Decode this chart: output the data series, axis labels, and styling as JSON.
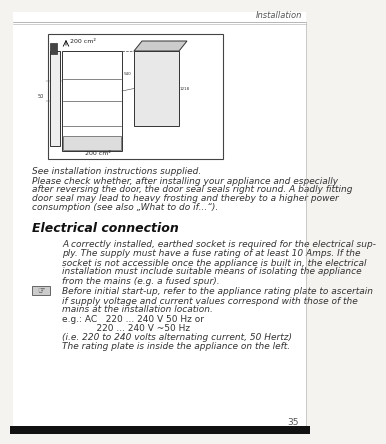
{
  "bg_color": "#f5f3f0",
  "page_bg": "#ffffff",
  "header_text": "Installation",
  "header_color": "#666666",
  "page_number": "35",
  "section_title": "Electrical connection",
  "body_text_color": "#333333",
  "line1": "See installation instructions supplied.",
  "para1_l1": "Please check whether, after installing your appliance and especially",
  "para1_l2": "after reversing the door, the door seal seals right round. A badly fitting",
  "para1_l3": "door seal may lead to heavy frosting and thereby to a higher power",
  "para1_l4": "consumption (see also „What to do if...“).",
  "para2_l1": "A correctly installed, earthed socket is required for the electrical sup-",
  "para2_l2": "ply. The supply must have a fuse rating of at least 10 Amps. If the",
  "para2_l3": "socket is not accessible once the appliance is built in, the electrical",
  "para2_l4": "installation must include suitable means of isolating the appliance",
  "para2_l5": "from the mains (e.g. a fused spur).",
  "para3_l1": "Before initial start-up, refer to the appliance rating plate to ascertain",
  "para3_l2": "if supply voltage and current values correspond with those of the",
  "para3_l3": "mains at the installation location.",
  "para4_l1": "e.g.: AC   220 ... 240 V 50 Hz or",
  "para4_l2": "            220 ... 240 V ~50 Hz",
  "para4_l3": "(i.e. 220 to 240 volts alternating current, 50 Hertz)",
  "para4_l4": "The rating plate is inside the appliance on the left.",
  "font_size_body": 6.5,
  "font_size_header": 6.0,
  "font_size_section": 9.0,
  "lm": 0.07,
  "rm": 0.96,
  "ind": 0.17
}
